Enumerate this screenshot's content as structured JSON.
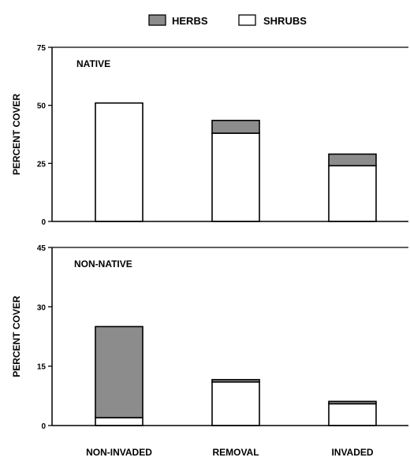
{
  "legend": {
    "herbs_label": "HERBS",
    "shrubs_label": "SHRUBS",
    "herbs_color": "#8c8c8c",
    "shrubs_color": "#ffffff"
  },
  "categories": [
    "NON-INVADED",
    "REMOVAL",
    "INVADED"
  ],
  "chart_data": [
    {
      "type": "bar",
      "stacked": true,
      "title": "NATIVE",
      "ylabel": "PERCENT COVER",
      "xlabel": "",
      "ylim": [
        0,
        75
      ],
      "yticks": [
        0,
        25,
        50,
        75
      ],
      "categories": [
        "NON-INVADED",
        "REMOVAL",
        "INVADED"
      ],
      "series": [
        {
          "name": "SHRUBS",
          "values": [
            51,
            38,
            24
          ],
          "color": "#ffffff"
        },
        {
          "name": "HERBS",
          "values": [
            0,
            5.5,
            5
          ],
          "color": "#8c8c8c"
        }
      ],
      "grid": false,
      "legend": "top"
    },
    {
      "type": "bar",
      "stacked": true,
      "title": "NON-NATIVE",
      "ylabel": "PERCENT COVER",
      "xlabel": "",
      "ylim": [
        0,
        45
      ],
      "yticks": [
        0,
        15,
        30,
        45
      ],
      "categories": [
        "NON-INVADED",
        "REMOVAL",
        "INVADED"
      ],
      "series": [
        {
          "name": "SHRUBS",
          "values": [
            2,
            11,
            5.5
          ],
          "color": "#ffffff"
        },
        {
          "name": "HERBS",
          "values": [
            23,
            0.6,
            0.6
          ],
          "color": "#8c8c8c"
        }
      ],
      "grid": false,
      "legend": "top"
    }
  ]
}
